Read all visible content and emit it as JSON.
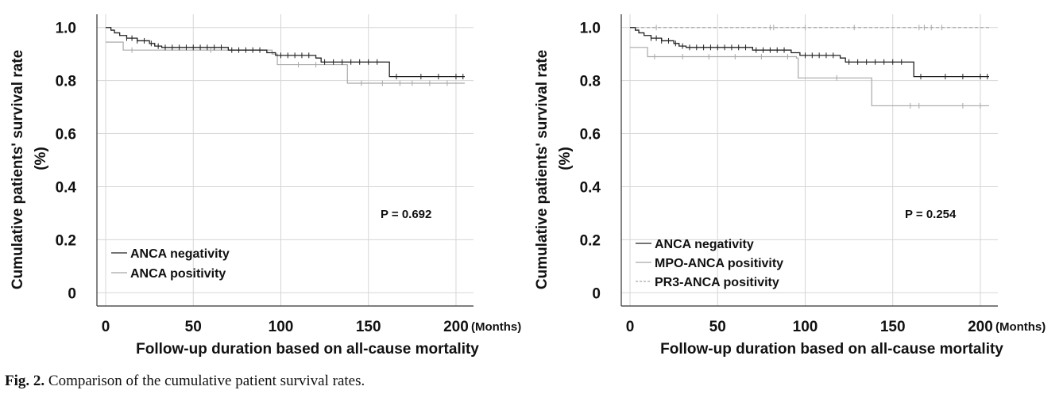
{
  "caption": {
    "prefix": "Fig. 2.",
    "text": " Comparison of the cumulative patient survival rates."
  },
  "chart_data": [
    {
      "type": "line",
      "subtype": "kaplan-meier",
      "ylabel_line1": "Cumulative patients' survival rate",
      "ylabel_line2": "(%)",
      "xlabel": "Follow-up duration based on all-cause mortality",
      "x_unit": "(Months)",
      "xlim": [
        -5,
        210
      ],
      "ylim": [
        -0.05,
        1.05
      ],
      "x_ticks": [
        0,
        50,
        100,
        150,
        200
      ],
      "x_tick_labels": [
        "0",
        "50",
        "100",
        "150",
        "200"
      ],
      "y_ticks": [
        0,
        0.2,
        0.4,
        0.6,
        0.8,
        1.0
      ],
      "y_tick_labels": [
        "0",
        "0.2",
        "0.4",
        "0.6",
        "0.8",
        "1.0"
      ],
      "grid": true,
      "annotation": "P = 0.692",
      "legend_position": "bottom-left",
      "series": [
        {
          "name": "ANCA negativity",
          "color": "#222222",
          "dash": "solid",
          "steps": [
            [
              0,
              1.0
            ],
            [
              3,
              0.99
            ],
            [
              5,
              0.98
            ],
            [
              8,
              0.97
            ],
            [
              12,
              0.96
            ],
            [
              18,
              0.95
            ],
            [
              25,
              0.94
            ],
            [
              28,
              0.93
            ],
            [
              32,
              0.925
            ],
            [
              70,
              0.915
            ],
            [
              92,
              0.905
            ],
            [
              97,
              0.895
            ],
            [
              120,
              0.885
            ],
            [
              123,
              0.87
            ],
            [
              162,
              0.815
            ],
            [
              205,
              0.815
            ]
          ],
          "censor_x": [
            12,
            15,
            18,
            22,
            26,
            30,
            34,
            38,
            42,
            46,
            50,
            54,
            58,
            62,
            66,
            72,
            76,
            80,
            84,
            88,
            100,
            104,
            108,
            112,
            116,
            125,
            130,
            135,
            140,
            145,
            150,
            155,
            166,
            180,
            190,
            200,
            204
          ]
        },
        {
          "name": "ANCA positivity",
          "color": "#a8a8a8",
          "dash": "solid",
          "steps": [
            [
              0,
              0.945
            ],
            [
              10,
              0.915
            ],
            [
              95,
              0.9
            ],
            [
              98,
              0.86
            ],
            [
              125,
              0.86
            ],
            [
              138,
              0.79
            ],
            [
              205,
              0.79
            ]
          ],
          "censor_x": [
            15,
            60,
            110,
            120,
            146,
            158,
            168,
            175,
            185,
            195
          ]
        }
      ]
    },
    {
      "type": "line",
      "subtype": "kaplan-meier",
      "ylabel_line1": "Cumulative patients' survival rate",
      "ylabel_line2": "(%)",
      "xlabel": "Follow-up duration based on all-cause mortality",
      "x_unit": "(Months)",
      "xlim": [
        -5,
        210
      ],
      "ylim": [
        -0.05,
        1.05
      ],
      "x_ticks": [
        0,
        50,
        100,
        150,
        200
      ],
      "x_tick_labels": [
        "0",
        "50",
        "100",
        "150",
        "200"
      ],
      "y_ticks": [
        0,
        0.2,
        0.4,
        0.6,
        0.8,
        1.0
      ],
      "y_tick_labels": [
        "0",
        "0.2",
        "0.4",
        "0.6",
        "0.8",
        "1.0"
      ],
      "grid": true,
      "annotation": "P = 0.254",
      "legend_position": "bottom-left",
      "series": [
        {
          "name": "ANCA negativity",
          "color": "#222222",
          "dash": "solid",
          "steps": [
            [
              0,
              1.0
            ],
            [
              3,
              0.99
            ],
            [
              5,
              0.98
            ],
            [
              8,
              0.97
            ],
            [
              12,
              0.96
            ],
            [
              18,
              0.95
            ],
            [
              25,
              0.94
            ],
            [
              28,
              0.93
            ],
            [
              32,
              0.925
            ],
            [
              70,
              0.915
            ],
            [
              92,
              0.905
            ],
            [
              97,
              0.895
            ],
            [
              120,
              0.885
            ],
            [
              123,
              0.87
            ],
            [
              162,
              0.815
            ],
            [
              205,
              0.815
            ]
          ],
          "censor_x": [
            12,
            15,
            18,
            22,
            26,
            30,
            34,
            38,
            42,
            46,
            50,
            54,
            58,
            62,
            66,
            72,
            76,
            80,
            84,
            88,
            100,
            104,
            108,
            112,
            116,
            125,
            130,
            135,
            140,
            145,
            150,
            155,
            166,
            180,
            190,
            200,
            204
          ]
        },
        {
          "name": "MPO-ANCA positivity",
          "color": "#a8a8a8",
          "dash": "solid",
          "steps": [
            [
              0,
              0.925
            ],
            [
              10,
              0.89
            ],
            [
              95,
              0.885
            ],
            [
              96,
              0.81
            ],
            [
              137,
              0.81
            ],
            [
              138,
              0.705
            ],
            [
              205,
              0.705
            ]
          ],
          "censor_x": [
            14,
            30,
            45,
            60,
            75,
            90,
            118,
            160,
            165,
            190,
            200
          ]
        },
        {
          "name": "PR3-ANCA positivity",
          "color": "#a8a8a8",
          "dash": "dashed",
          "steps": [
            [
              0,
              1.0
            ],
            [
              205,
              1.0
            ]
          ],
          "censor_x": [
            15,
            80,
            82,
            100,
            128,
            165,
            168,
            172,
            178
          ]
        }
      ]
    }
  ]
}
